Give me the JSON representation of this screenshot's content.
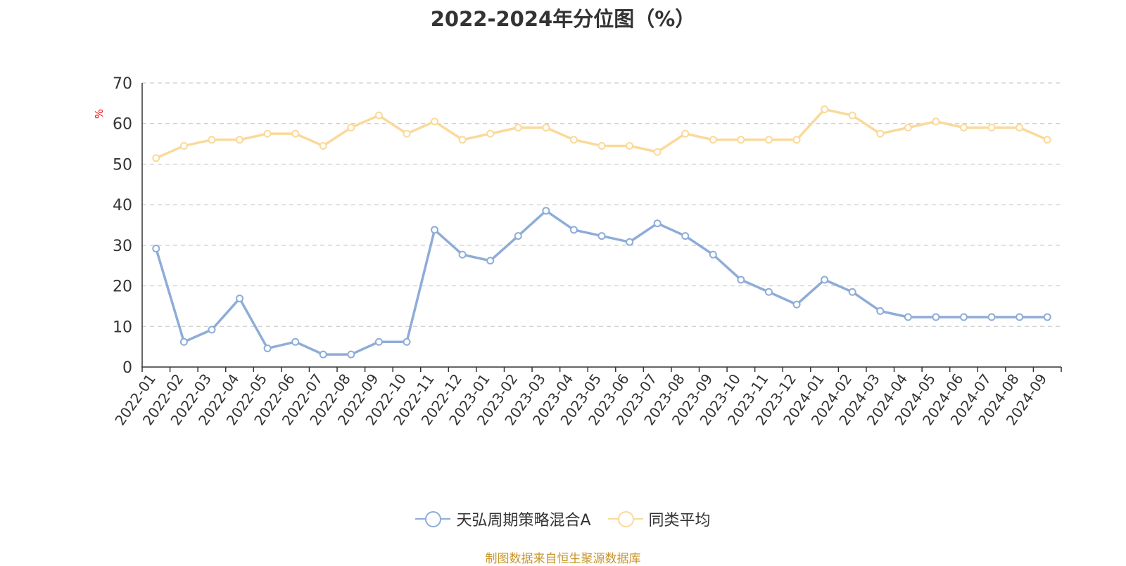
{
  "chart_data": {
    "type": "line",
    "title": "2022-2024年分位图（%）",
    "ylabel": "%",
    "ylim": [
      0,
      70
    ],
    "yticks": [
      0,
      10,
      20,
      30,
      40,
      50,
      60,
      70
    ],
    "grid": true,
    "legend_position": "bottom",
    "categories": [
      "2022-01",
      "2022-02",
      "2022-03",
      "2022-04",
      "2022-05",
      "2022-06",
      "2022-07",
      "2022-08",
      "2022-09",
      "2022-10",
      "2022-11",
      "2022-12",
      "2023-01",
      "2023-02",
      "2023-03",
      "2023-04",
      "2023-05",
      "2023-06",
      "2023-07",
      "2023-08",
      "2023-09",
      "2023-10",
      "2023-11",
      "2023-12",
      "2024-01",
      "2024-02",
      "2024-03",
      "2024-04",
      "2024-05",
      "2024-06",
      "2024-07",
      "2024-08",
      "2024-09"
    ],
    "series": [
      {
        "name": "天弘周期策略混合A",
        "color": "#8eacd8",
        "values": [
          29.2,
          6.2,
          9.2,
          16.9,
          4.6,
          6.2,
          3.1,
          3.1,
          6.2,
          6.2,
          33.8,
          27.7,
          26.2,
          32.3,
          38.5,
          33.8,
          32.3,
          30.8,
          35.4,
          32.3,
          27.7,
          21.5,
          18.5,
          15.4,
          21.5,
          18.5,
          13.8,
          12.3,
          12.3,
          12.3,
          12.3,
          12.3,
          12.3
        ]
      },
      {
        "name": "同类平均",
        "color": "#fad99a",
        "values": [
          51.5,
          54.5,
          56.0,
          56.0,
          57.5,
          57.5,
          54.5,
          59.0,
          62.0,
          57.5,
          60.5,
          56.0,
          57.5,
          59.0,
          59.0,
          56.0,
          54.5,
          54.5,
          53.0,
          57.5,
          56.0,
          56.0,
          56.0,
          56.0,
          63.5,
          62.0,
          57.5,
          59.0,
          60.5,
          59.0,
          59.0,
          59.0,
          56.0
        ]
      }
    ],
    "ylabel_color": "#ff0000"
  },
  "source_text": "制图数据来自恒生聚源数据库"
}
